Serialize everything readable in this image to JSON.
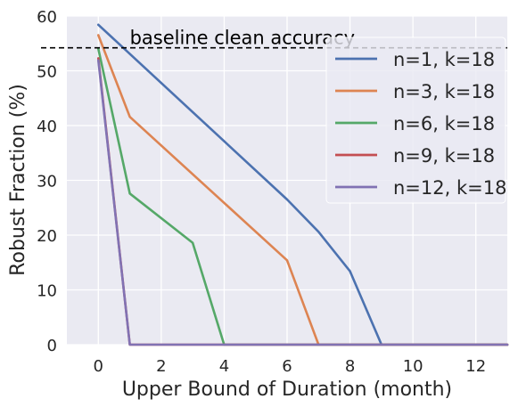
{
  "chart_data": {
    "type": "line",
    "title": "",
    "xlabel": "Upper Bound of Duration (month)",
    "ylabel": "Robust Fraction (%)",
    "xlim": [
      -1,
      13
    ],
    "ylim": [
      0,
      60
    ],
    "xticks": [
      0,
      2,
      4,
      6,
      8,
      10,
      12
    ],
    "yticks": [
      0,
      10,
      20,
      30,
      40,
      50,
      60
    ],
    "grid": true,
    "legend_position": "top-right",
    "baseline": {
      "label": "baseline clean accuracy",
      "value": 54.2,
      "style": "dashed",
      "color": "#000000"
    },
    "series": [
      {
        "name": "n=1, k=18",
        "color": "#4c72b0",
        "x": [
          0,
          6,
          7,
          8,
          9,
          13
        ],
        "y": [
          58.4,
          26.5,
          20.6,
          13.4,
          0,
          0
        ]
      },
      {
        "name": "n=3, k=18",
        "color": "#dd8452",
        "x": [
          0,
          1,
          6,
          7,
          13
        ],
        "y": [
          56.5,
          41.6,
          15.4,
          0,
          0
        ]
      },
      {
        "name": "n=6, k=18",
        "color": "#55a868",
        "x": [
          0,
          1,
          3,
          4,
          13
        ],
        "y": [
          54.0,
          27.6,
          18.6,
          0,
          0
        ]
      },
      {
        "name": "n=9, k=18",
        "color": "#c44e52",
        "x": [
          0,
          1,
          13
        ],
        "y": [
          52.3,
          0,
          0
        ]
      },
      {
        "name": "n=12, k=18",
        "color": "#8172b3",
        "x": [
          0,
          1,
          13
        ],
        "y": [
          51.9,
          0,
          0
        ]
      }
    ]
  }
}
